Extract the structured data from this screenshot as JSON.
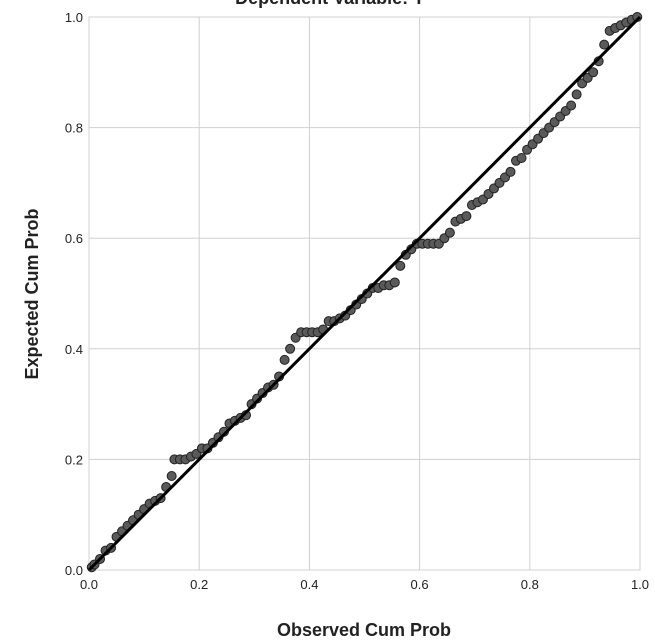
{
  "chart_data": {
    "type": "scatter",
    "title": "Dependent Variable: Y",
    "xlabel": "Observed Cum Prob",
    "ylabel": "Expected Cum Prob",
    "xlim": [
      0,
      1
    ],
    "ylim": [
      0,
      1
    ],
    "xticks": [
      {
        "value": 0,
        "label": "0.0"
      },
      {
        "value": 0.2,
        "label": "0.2"
      },
      {
        "value": 0.4,
        "label": "0.4"
      },
      {
        "value": 0.6,
        "label": "0.6"
      },
      {
        "value": 0.8,
        "label": "0.8"
      },
      {
        "value": 1,
        "label": "1.0"
      }
    ],
    "yticks": [
      {
        "value": 0,
        "label": "0.0"
      },
      {
        "value": 0.2,
        "label": "0.2"
      },
      {
        "value": 0.4,
        "label": "0.4"
      },
      {
        "value": 0.6,
        "label": "0.6"
      },
      {
        "value": 0.8,
        "label": "0.8"
      },
      {
        "value": 1,
        "label": "1.0"
      }
    ],
    "grid": true,
    "color": "#5a5a5a",
    "reference_line": {
      "x": [
        0,
        1
      ],
      "y": [
        0,
        1
      ],
      "color": "#000000"
    },
    "x": [
      0.005,
      0.01,
      0.02,
      0.03,
      0.04,
      0.05,
      0.06,
      0.07,
      0.08,
      0.09,
      0.1,
      0.11,
      0.12,
      0.13,
      0.14,
      0.15,
      0.155,
      0.165,
      0.175,
      0.185,
      0.195,
      0.205,
      0.215,
      0.225,
      0.235,
      0.245,
      0.255,
      0.265,
      0.275,
      0.285,
      0.295,
      0.305,
      0.315,
      0.325,
      0.335,
      0.345,
      0.355,
      0.365,
      0.375,
      0.385,
      0.395,
      0.405,
      0.415,
      0.425,
      0.435,
      0.445,
      0.455,
      0.465,
      0.475,
      0.485,
      0.495,
      0.505,
      0.515,
      0.525,
      0.535,
      0.545,
      0.555,
      0.565,
      0.575,
      0.585,
      0.595,
      0.605,
      0.615,
      0.625,
      0.635,
      0.645,
      0.655,
      0.665,
      0.675,
      0.685,
      0.695,
      0.705,
      0.715,
      0.725,
      0.735,
      0.745,
      0.755,
      0.765,
      0.775,
      0.785,
      0.795,
      0.805,
      0.815,
      0.825,
      0.835,
      0.845,
      0.855,
      0.865,
      0.875,
      0.885,
      0.895,
      0.905,
      0.915,
      0.925,
      0.935,
      0.945,
      0.955,
      0.965,
      0.975,
      0.985,
      0.995
    ],
    "y": [
      0.005,
      0.01,
      0.02,
      0.035,
      0.04,
      0.06,
      0.07,
      0.08,
      0.09,
      0.1,
      0.11,
      0.12,
      0.125,
      0.13,
      0.15,
      0.17,
      0.2,
      0.2,
      0.2,
      0.205,
      0.21,
      0.22,
      0.22,
      0.23,
      0.24,
      0.25,
      0.265,
      0.27,
      0.275,
      0.28,
      0.3,
      0.31,
      0.32,
      0.33,
      0.335,
      0.35,
      0.38,
      0.4,
      0.42,
      0.43,
      0.43,
      0.43,
      0.43,
      0.435,
      0.45,
      0.45,
      0.455,
      0.46,
      0.47,
      0.48,
      0.49,
      0.5,
      0.51,
      0.51,
      0.515,
      0.515,
      0.52,
      0.55,
      0.57,
      0.58,
      0.59,
      0.59,
      0.59,
      0.59,
      0.59,
      0.6,
      0.61,
      0.63,
      0.635,
      0.64,
      0.66,
      0.665,
      0.67,
      0.68,
      0.69,
      0.7,
      0.71,
      0.72,
      0.74,
      0.745,
      0.76,
      0.77,
      0.78,
      0.79,
      0.8,
      0.81,
      0.82,
      0.83,
      0.84,
      0.86,
      0.88,
      0.89,
      0.9,
      0.92,
      0.95,
      0.975,
      0.98,
      0.985,
      0.99,
      0.995,
      1.0
    ]
  }
}
